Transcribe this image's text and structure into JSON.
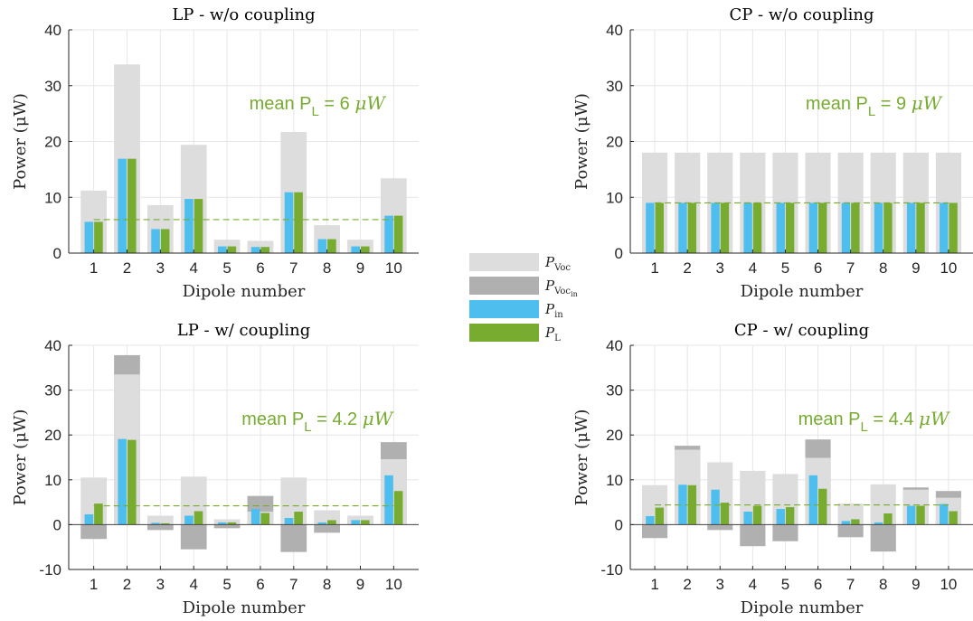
{
  "legend": {
    "items": [
      {
        "label": "P",
        "sub": "Voc",
        "color": "#dddddd"
      },
      {
        "label": "P",
        "sub": "Voc",
        "sub2": "in",
        "color": "#b0b0b0"
      },
      {
        "label": "P",
        "sub": "in",
        "color": "#4dbeee"
      },
      {
        "label": "P",
        "sub": "L",
        "color": "#77ac30"
      }
    ]
  },
  "colors": {
    "pvoc": "#dddddd",
    "pvocin": "#b0b0b0",
    "pin": "#4dbeee",
    "pl": "#77ac30",
    "grid": "#e6e6e6",
    "axis": "#262626"
  },
  "chart_data": [
    {
      "type": "bar",
      "title": "LP - w/o coupling",
      "xlabel": "Dipole number",
      "ylabel": "Power (μW)",
      "ylim": [
        0,
        40
      ],
      "yticks": [
        0,
        10,
        20,
        30,
        40
      ],
      "categories": [
        "1",
        "2",
        "3",
        "4",
        "5",
        "6",
        "7",
        "8",
        "9",
        "10"
      ],
      "annotation": {
        "prefix": "mean P",
        "sub": "L",
        "suffix": " = 6 ",
        "unit": "μW"
      },
      "mean_pl": 6,
      "series": [
        {
          "name": "PVoc",
          "values": [
            11.2,
            33.8,
            8.6,
            19.4,
            2.4,
            2.2,
            21.7,
            5.0,
            2.4,
            13.4
          ]
        },
        {
          "name": "PVocin",
          "values": [
            0,
            0,
            0,
            0,
            0,
            0,
            0,
            0,
            0,
            0
          ]
        },
        {
          "name": "Pin",
          "values": [
            5.6,
            16.9,
            4.3,
            9.7,
            1.2,
            1.1,
            10.9,
            2.5,
            1.2,
            6.7
          ]
        },
        {
          "name": "PL",
          "values": [
            5.6,
            16.9,
            4.3,
            9.7,
            1.2,
            1.1,
            10.9,
            2.5,
            1.2,
            6.7
          ]
        }
      ]
    },
    {
      "type": "bar",
      "title": "CP - w/o coupling",
      "xlabel": "Dipole number",
      "ylabel": "Power (μW)",
      "ylim": [
        0,
        40
      ],
      "yticks": [
        0,
        10,
        20,
        30,
        40
      ],
      "categories": [
        "1",
        "2",
        "3",
        "4",
        "5",
        "6",
        "7",
        "8",
        "9",
        "10"
      ],
      "annotation": {
        "prefix": "mean P",
        "sub": "L",
        "suffix": " = 9 ",
        "unit": "μW"
      },
      "mean_pl": 9,
      "series": [
        {
          "name": "PVoc",
          "values": [
            18,
            18,
            18,
            18,
            18,
            18,
            18,
            18,
            18,
            18
          ]
        },
        {
          "name": "PVocin",
          "values": [
            0,
            0,
            0,
            0,
            0,
            0,
            0,
            0,
            0,
            0
          ]
        },
        {
          "name": "Pin",
          "values": [
            9,
            9,
            9,
            9,
            9,
            9,
            9,
            9,
            9,
            9
          ]
        },
        {
          "name": "PL",
          "values": [
            9,
            9,
            9,
            9,
            9,
            9,
            9,
            9,
            9,
            9
          ]
        }
      ]
    },
    {
      "type": "bar",
      "title": "LP - w/ coupling",
      "xlabel": "Dipole number",
      "ylabel": "Power (μW)",
      "ylim": [
        -10,
        40
      ],
      "yticks": [
        -10,
        0,
        10,
        20,
        30,
        40
      ],
      "categories": [
        "1",
        "2",
        "3",
        "4",
        "5",
        "6",
        "7",
        "8",
        "9",
        "10"
      ],
      "annotation": {
        "prefix": "mean P",
        "sub": "L",
        "suffix": " = 4.2 ",
        "unit": "μW"
      },
      "mean_pl": 4.2,
      "series": [
        {
          "name": "PVoc",
          "values": [
            10.5,
            33.5,
            2.0,
            10.7,
            1.2,
            2.9,
            10.5,
            3.2,
            2.0,
            14.6
          ]
        },
        {
          "name": "PVocin",
          "values": [
            -3.2,
            37.8,
            -1.2,
            -5.5,
            -0.8,
            6.4,
            -6.1,
            -1.8,
            1.0,
            18.4
          ]
        },
        {
          "name": "Pin",
          "values": [
            2.3,
            19.1,
            0.4,
            2.0,
            0.5,
            3.5,
            1.5,
            0.5,
            1.0,
            11.0
          ]
        },
        {
          "name": "PL",
          "values": [
            4.7,
            18.9,
            0.3,
            3.0,
            0.5,
            2.6,
            2.9,
            1.0,
            1.0,
            7.5
          ]
        }
      ]
    },
    {
      "type": "bar",
      "title": "CP - w/ coupling",
      "xlabel": "Dipole number",
      "ylabel": "Power (μW)",
      "ylim": [
        -10,
        40
      ],
      "yticks": [
        -10,
        0,
        10,
        20,
        30,
        40
      ],
      "categories": [
        "1",
        "2",
        "3",
        "4",
        "5",
        "6",
        "7",
        "8",
        "9",
        "10"
      ],
      "annotation": {
        "prefix": "mean P",
        "sub": "L",
        "suffix": " = 4.4 ",
        "unit": "μW"
      },
      "mean_pl": 4.4,
      "series": [
        {
          "name": "PVoc",
          "values": [
            8.8,
            16.7,
            13.9,
            12.0,
            11.3,
            14.9,
            4.7,
            9.0,
            7.8,
            6.0
          ]
        },
        {
          "name": "PVocin",
          "values": [
            -3.0,
            17.6,
            -1.2,
            -4.8,
            -3.7,
            19.0,
            -2.8,
            -6.0,
            8.3,
            7.5
          ]
        },
        {
          "name": "Pin",
          "values": [
            1.9,
            8.9,
            7.8,
            2.9,
            3.5,
            11.0,
            0.8,
            0.5,
            4.2,
            4.6
          ]
        },
        {
          "name": "PL",
          "values": [
            3.8,
            8.8,
            4.9,
            4.2,
            3.9,
            8.0,
            1.2,
            2.5,
            4.2,
            3.0
          ]
        }
      ]
    }
  ]
}
